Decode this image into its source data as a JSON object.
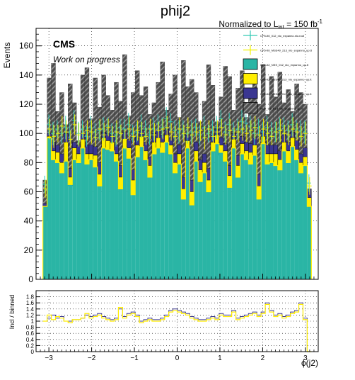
{
  "page": {
    "title": "phij2",
    "lumi_prefix": "Normalized to L",
    "lumi_sub": "int",
    "lumi_suffix": " = 150 fb",
    "lumi_sup": "-1",
    "cms_label": "CMS",
    "cms_sub": "Work on progress"
  },
  "colors": {
    "teal": "#2ab5a5",
    "yellow": "#ffee00",
    "navy": "#3a3691",
    "dark_hatch": "#4d4d4d",
    "cyan_points": "#33c9b5",
    "yellow_points": "#f2f200"
  },
  "legend": {
    "entries": [
      {
        "label": "CP5-tt0_012_nlo_expanno.nlo.root",
        "style": "cyan-errbar"
      },
      {
        "label": "CP5-tt0_MSS40_213_nlo_expanno_up.tt",
        "style": "yellow-errbar"
      },
      {
        "label": "CP5-tt2_NSS_012_nlo_expanno_up.tt",
        "style": "teal-box"
      },
      {
        "label": "CP5-tt2_NSS40_213_nlo_expanno_up.tt",
        "style": "yellow-box"
      },
      {
        "label": "CP5-tt2_NSS40_013_nlo_expanno_up.tt",
        "style": "navy-box"
      },
      {
        "label": "NLO_SS_013_nlo_expanno_up.tt",
        "style": "hatch-box"
      }
    ]
  },
  "chart_data": [
    {
      "type": "bar",
      "ylabel": "Events",
      "xlim": [
        -3.3,
        3.3
      ],
      "ylim": [
        0,
        172
      ],
      "yticks": [
        0,
        20,
        40,
        60,
        80,
        100,
        120,
        140,
        160
      ],
      "xticks": [
        -3,
        -2,
        -1,
        0,
        1,
        2,
        3
      ],
      "grid": true,
      "legend_position": "top-right",
      "bin_range": [
        -3.14,
        3.14
      ],
      "nbins": 64,
      "series": [
        {
          "name": "CP5-tt2_NSS_012_nlo_expanno_up.tt",
          "kind": "filled",
          "values": [
            50,
            97,
            82,
            80,
            73,
            81,
            65,
            82,
            80,
            90,
            79,
            82,
            77,
            64,
            90,
            89,
            88,
            81,
            62,
            90,
            83,
            58,
            84,
            91,
            82,
            70,
            86,
            90,
            87,
            94,
            86,
            73,
            79,
            55,
            90,
            51,
            81,
            67,
            73,
            60,
            88,
            93,
            87,
            81,
            63,
            90,
            70,
            86,
            82,
            79,
            85,
            55,
            93,
            79,
            80,
            78,
            75,
            88,
            80,
            91,
            82,
            73,
            78,
            50
          ]
        },
        {
          "name": "CP5-tt2_NSS40_213_nlo_expanno_up.tt",
          "kind": "filled",
          "values": [
            50,
            98,
            88,
            87,
            80,
            94,
            70,
            90,
            86,
            96,
            86,
            86,
            85,
            72,
            97,
            95,
            94,
            86,
            70,
            96,
            90,
            68,
            92,
            98,
            88,
            78,
            94,
            97,
            94,
            99,
            92,
            80,
            86,
            62,
            95,
            60,
            88,
            75,
            80,
            68,
            94,
            99,
            92,
            88,
            71,
            96,
            78,
            93,
            88,
            87,
            92,
            64,
            98,
            86,
            86,
            86,
            82,
            94,
            88,
            97,
            89,
            80,
            84,
            56
          ]
        },
        {
          "name": "CP5-tt2_NSS40_013_nlo_expanno_up.tt",
          "kind": "filled",
          "values": [
            52,
            100,
            94,
            92,
            86,
            100,
            76,
            94,
            92,
            100,
            92,
            92,
            91,
            80,
            101,
            100,
            99,
            92,
            78,
            101,
            96,
            75,
            97,
            102,
            94,
            84,
            100,
            102,
            99,
            103,
            97,
            86,
            92,
            70,
            99,
            68,
            94,
            82,
            86,
            76,
            99,
            103,
            97,
            93,
            78,
            100,
            85,
            98,
            94,
            93,
            97,
            72,
            102,
            92,
            92,
            92,
            88,
            99,
            94,
            101,
            95,
            86,
            90,
            62
          ]
        },
        {
          "name": "NLO_SS_013_nlo_expanno_up.tt",
          "kind": "hatched",
          "values": [
            68,
            138,
            148,
            115,
            128,
            106,
            134,
            121,
            95,
            140,
            145,
            110,
            138,
            118,
            140,
            126,
            116,
            135,
            122,
            154,
            112,
            128,
            143,
            126,
            132,
            113,
            121,
            135,
            149,
            116,
            127,
            140,
            111,
            150,
            132,
            137,
            128,
            108,
            122,
            147,
            133,
            108,
            125,
            146,
            139,
            116,
            131,
            143,
            111,
            124,
            136,
            120,
            147,
            113,
            139,
            125,
            142,
            121,
            130,
            115,
            134,
            128,
            120,
            60
          ]
        },
        {
          "name": "CP5-tt0_012_nlo_expanno.nlo.root",
          "kind": "points",
          "values": [
            65,
            106,
            100,
            103,
            100,
            104,
            101,
            109,
            100,
            103,
            98,
            104,
            101,
            102,
            103,
            105,
            100,
            99,
            104,
            103,
            106,
            100,
            101,
            105,
            103,
            99,
            103,
            107,
            104,
            110,
            108,
            102,
            101,
            103,
            100,
            101,
            104,
            99,
            104,
            100,
            102,
            104,
            110,
            101,
            106,
            102,
            103,
            108,
            107,
            105,
            100,
            104,
            101,
            104,
            102,
            101,
            103,
            105,
            102,
            106,
            103,
            102,
            101,
            66
          ]
        },
        {
          "name": "CP5-tt0_MSS40_213_nlo_expanno_up.tt",
          "kind": "points",
          "values": [
            62,
            103,
            98,
            100,
            105,
            101,
            96,
            106,
            99,
            100,
            102,
            101,
            97,
            103,
            99,
            104,
            98,
            101,
            100,
            96,
            103,
            98,
            102,
            100,
            98,
            103,
            99,
            102,
            103,
            104,
            101,
            98,
            103,
            100,
            104,
            99,
            101,
            102,
            97,
            103,
            98,
            101,
            104,
            99,
            102,
            98,
            101,
            103,
            100,
            102,
            104,
            99,
            103,
            100,
            98,
            101,
            102,
            100,
            99,
            103,
            101,
            98,
            100,
            64
          ]
        }
      ]
    },
    {
      "type": "line",
      "ylabel": "Incl / binned",
      "xlabel": "ϕ(j2)",
      "xlim": [
        -3.3,
        3.3
      ],
      "ylim": [
        0,
        2
      ],
      "yticks": [
        0,
        0.2,
        0.4,
        0.6,
        0.8,
        1,
        1.2,
        1.4,
        1.6,
        1.8
      ],
      "ytick_labels": [
        "0",
        "0.2",
        "0.4",
        "0.6",
        "0.8",
        "1",
        "1.2",
        "1.4",
        "1.6",
        "1.8"
      ],
      "xticks": [
        -3,
        -2,
        -1,
        0,
        1,
        2,
        3
      ],
      "grid": true,
      "series": [
        {
          "name": "ratio (navy)",
          "values": [
            1,
            1.1,
            1.2,
            1.1,
            1.15,
            1,
            1,
            1.05,
            1.05,
            1.1,
            1.2,
            1.15,
            1.2,
            1.25,
            1.15,
            1.1,
            1.05,
            1.1,
            1.4,
            1.15,
            1.25,
            1.3,
            1.2,
            1,
            1.05,
            1.1,
            1.05,
            1.05,
            1.1,
            1.2,
            1.35,
            1.4,
            1.35,
            1.3,
            1.25,
            1.15,
            1.1,
            1.05,
            1.05,
            1.1,
            1.15,
            1.1,
            1.25,
            1.2,
            1.2,
            1.35,
            1.1,
            1.15,
            1.2,
            1.25,
            1.3,
            1.2,
            1.3,
            1.6,
            1.35,
            1.2,
            1.25,
            1.15,
            1.2,
            1.3,
            1.35,
            1.6,
            1.1,
            0
          ]
        },
        {
          "name": "ratio (yellow)",
          "values": [
            1,
            1.2,
            1.05,
            1.15,
            1.1,
            1,
            0.95,
            1.05,
            1.05,
            1.1,
            1.25,
            1.1,
            1.15,
            1.2,
            1.1,
            1.05,
            1,
            1.05,
            1.45,
            1.1,
            1.2,
            1.25,
            1.15,
            0.95,
            1,
            1.05,
            1,
            1,
            1.05,
            1.15,
            1.3,
            1.35,
            1.3,
            1.25,
            1.2,
            1.1,
            1.05,
            1,
            1,
            1.05,
            1.1,
            1.05,
            1.2,
            1.15,
            1.15,
            1.3,
            1.05,
            1.1,
            1.15,
            1.2,
            1.25,
            1.15,
            1.25,
            1.55,
            1.3,
            1.15,
            1.2,
            1.1,
            1.15,
            1.25,
            1.3,
            1.55,
            1.05,
            0
          ]
        }
      ]
    }
  ]
}
